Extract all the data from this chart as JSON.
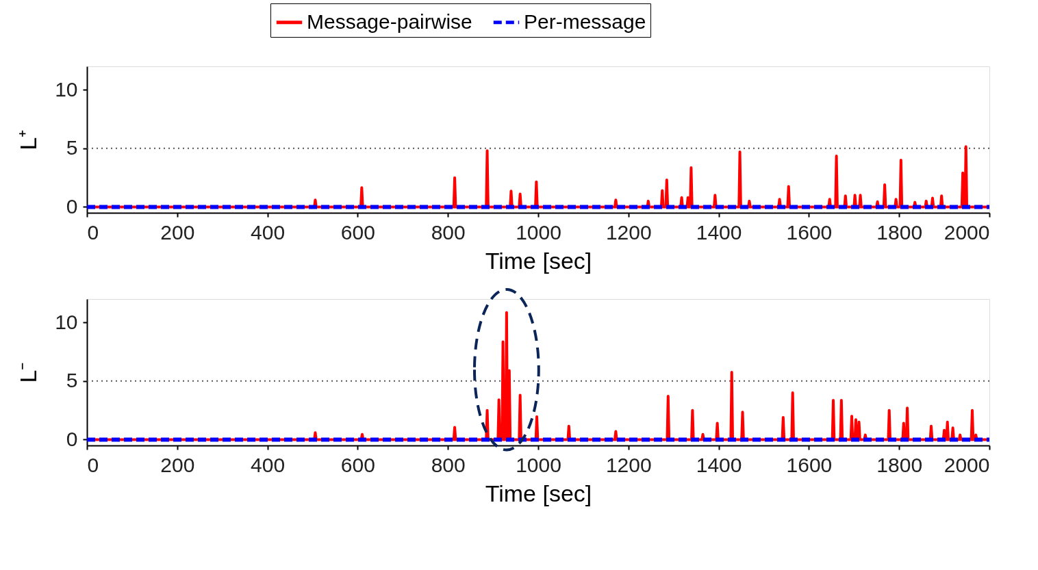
{
  "chart_data": [
    {
      "type": "line",
      "xlabel": "Time [sec]",
      "ylabel": "L⁺",
      "xlim": [
        0,
        2000
      ],
      "xticks": [
        0,
        200,
        400,
        600,
        800,
        1000,
        1200,
        1400,
        1600,
        1800,
        2000
      ],
      "ylim": [
        -0.5,
        12
      ],
      "yticks": [
        0,
        5,
        10
      ],
      "grid": false,
      "legend": "top",
      "ref_lines": [
        {
          "axis": "y",
          "value": 5,
          "color": "#555555",
          "line_style": "dotted"
        }
      ],
      "series": [
        {
          "name": "Message-pairwise",
          "color": "#ff0000",
          "line_style": "solid",
          "x": [
            0,
            504,
            506,
            508,
            607,
            609,
            611,
            813,
            815,
            817,
            885,
            887,
            889,
            938,
            940,
            942,
            958,
            960,
            962,
            994,
            996,
            998,
            1170,
            1172,
            1174,
            1242,
            1244,
            1246,
            1273,
            1275,
            1277,
            1283,
            1285,
            1287,
            1316,
            1318,
            1320,
            1330,
            1332,
            1334,
            1337,
            1339,
            1341,
            1390,
            1392,
            1394,
            1445,
            1447,
            1449,
            1466,
            1468,
            1470,
            1533,
            1535,
            1537,
            1553,
            1555,
            1557,
            1644,
            1646,
            1648,
            1659,
            1661,
            1663,
            1679,
            1681,
            1683,
            1700,
            1702,
            1704,
            1712,
            1714,
            1716,
            1750,
            1752,
            1754,
            1766,
            1768,
            1770,
            1791,
            1793,
            1795,
            1802,
            1804,
            1806,
            1833,
            1835,
            1837,
            1858,
            1860,
            1862,
            1872,
            1874,
            1876,
            1892,
            1894,
            1896,
            1939,
            1941,
            1943,
            1946,
            1948,
            1950,
            2000
          ],
          "values": [
            0,
            0,
            0.6,
            0,
            0,
            1.65,
            0,
            0,
            2.5,
            0,
            0,
            4.8,
            0,
            0,
            1.35,
            0,
            0,
            1.1,
            0,
            0,
            2.15,
            0,
            0,
            0.6,
            0,
            0,
            0.5,
            0,
            0,
            1.4,
            0,
            0,
            2.3,
            0,
            0,
            0.8,
            0,
            0,
            0.8,
            0,
            0,
            3.35,
            0,
            0,
            1.0,
            0,
            0,
            4.7,
            0,
            0,
            0.5,
            0,
            0,
            0.65,
            0,
            0,
            1.75,
            0,
            0,
            0.65,
            0,
            0,
            4.35,
            0,
            0,
            0.95,
            0,
            0,
            1.0,
            0,
            0,
            1.0,
            0,
            0,
            0.45,
            0,
            0,
            1.9,
            0,
            0,
            0.65,
            0,
            0,
            4.0,
            0,
            0,
            0.4,
            0,
            0,
            0.5,
            0,
            0,
            0.75,
            0,
            0,
            0.95,
            0,
            0,
            2.9,
            0,
            0,
            5.15,
            0,
            0
          ]
        },
        {
          "name": "Per-message",
          "color": "#0000ff",
          "line_style": "dashed",
          "x": [
            0,
            2000
          ],
          "values": [
            0,
            0
          ]
        }
      ]
    },
    {
      "type": "line",
      "xlabel": "Time [sec]",
      "ylabel": "L⁻",
      "xlim": [
        0,
        2000
      ],
      "xticks": [
        0,
        200,
        400,
        600,
        800,
        1000,
        1200,
        1400,
        1600,
        1800,
        2000
      ],
      "ylim": [
        -0.5,
        12
      ],
      "yticks": [
        0,
        5,
        10
      ],
      "grid": false,
      "ref_lines": [
        {
          "axis": "y",
          "value": 5,
          "color": "#555555",
          "line_style": "dotted"
        }
      ],
      "series": [
        {
          "name": "Message-pairwise",
          "color": "#ff0000",
          "line_style": "solid",
          "x": [
            0,
            504,
            506,
            508,
            608,
            610,
            612,
            813,
            815,
            817,
            885,
            887,
            889,
            911,
            913,
            915,
            920,
            922,
            924,
            928,
            930,
            932,
            934,
            936,
            938,
            958,
            960,
            962,
            995,
            997,
            999,
            1066,
            1068,
            1070,
            1170,
            1172,
            1174,
            1286,
            1288,
            1290,
            1340,
            1342,
            1344,
            1363,
            1365,
            1367,
            1395,
            1397,
            1399,
            1427,
            1429,
            1431,
            1451,
            1453,
            1455,
            1541,
            1543,
            1545,
            1562,
            1564,
            1566,
            1652,
            1654,
            1656,
            1670,
            1672,
            1674,
            1693,
            1695,
            1697,
            1702,
            1704,
            1706,
            1709,
            1711,
            1713,
            1723,
            1725,
            1727,
            1776,
            1778,
            1780,
            1808,
            1810,
            1812,
            1816,
            1818,
            1820,
            1869,
            1871,
            1873,
            1898,
            1900,
            1902,
            1905,
            1907,
            1909,
            1917,
            1919,
            1921,
            1933,
            1935,
            1937,
            1960,
            1962,
            1964,
            1968,
            1970,
            1972,
            2000
          ],
          "values": [
            0,
            0,
            0.6,
            0,
            0,
            0.45,
            0,
            0,
            1.05,
            0,
            0,
            2.5,
            0,
            0,
            3.4,
            0,
            0,
            8.35,
            0,
            0,
            10.85,
            0,
            0,
            5.9,
            0,
            0,
            3.8,
            0,
            0,
            1.95,
            0,
            0,
            1.15,
            0,
            0,
            0.7,
            0,
            0,
            3.7,
            0,
            0,
            2.5,
            0,
            0,
            0.45,
            0,
            0,
            1.4,
            0,
            0,
            5.75,
            0,
            0,
            2.35,
            0,
            0,
            1.9,
            0,
            0,
            4.0,
            0,
            0,
            3.35,
            0,
            0,
            3.35,
            0,
            0,
            2.0,
            0,
            0,
            1.7,
            0,
            0,
            1.5,
            0,
            0,
            0.4,
            0,
            0,
            2.5,
            0,
            0,
            1.4,
            0,
            0,
            2.7,
            0,
            0,
            1.15,
            0,
            0,
            0.8,
            0,
            0,
            1.5,
            0,
            0,
            1.0,
            0,
            0,
            0.4,
            0,
            0,
            2.5,
            0,
            0,
            0.4,
            0,
            0
          ]
        },
        {
          "name": "Per-message",
          "color": "#0000ff",
          "line_style": "dashed",
          "x": [
            0,
            2000
          ],
          "values": [
            0,
            0
          ]
        }
      ]
    }
  ]
}
